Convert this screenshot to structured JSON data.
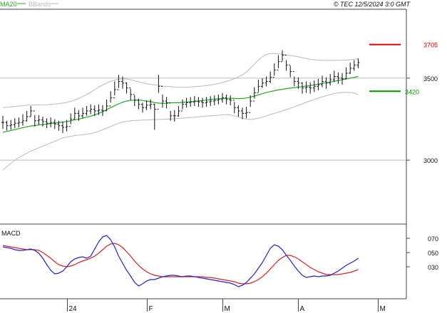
{
  "header": {
    "legend_ma": "MA20",
    "legend_bb": "BBands",
    "copyright": "© TEC 12/5/2024 3:0 GMT"
  },
  "colors": {
    "price": "#111111",
    "ma": "#22aa22",
    "bands": "#bbbbbb",
    "macd": "#2222dd",
    "signal": "#dd2222",
    "grid": "#bbbbbb",
    "resistance": "#dd0000",
    "support": "#009900"
  },
  "chart_data": [
    {
      "type": "ohlc",
      "title": "",
      "legend": [
        "MA20",
        "BBands"
      ],
      "y_ticks": [
        "3000",
        "3500"
      ],
      "y_tick_values": [
        3000,
        3500
      ],
      "ylim": [
        2610,
        3920
      ],
      "x_ticks": [
        "24",
        "F",
        "M",
        "A",
        "M"
      ],
      "x_tick_index": [
        16,
        36,
        55,
        74,
        94
      ],
      "levels": [
        {
          "label": "3705",
          "value": 3705,
          "color": "red"
        },
        {
          "label": "3420",
          "value": 3420,
          "color": "green"
        }
      ],
      "close": [
        3230,
        3210,
        3215,
        3225,
        3230,
        3240,
        3265,
        3300,
        3240,
        3245,
        3235,
        3225,
        3230,
        3220,
        3210,
        3200,
        3205,
        3250,
        3285,
        3270,
        3285,
        3300,
        3310,
        3300,
        3305,
        3300,
        3330,
        3380,
        3430,
        3480,
        3470,
        3440,
        3400,
        3365,
        3340,
        3320,
        3335,
        3340,
        3310,
        3450,
        3360,
        3350,
        3270,
        3270,
        3300,
        3340,
        3350,
        3355,
        3360,
        3355,
        3350,
        3355,
        3360,
        3365,
        3370,
        3380,
        3370,
        3365,
        3320,
        3300,
        3285,
        3290,
        3360,
        3410,
        3450,
        3470,
        3480,
        3505,
        3550,
        3600,
        3640,
        3580,
        3540,
        3480,
        3470,
        3440,
        3445,
        3440,
        3450,
        3460,
        3480,
        3470,
        3490,
        3510,
        3500,
        3495,
        3530,
        3560,
        3580,
        3595
      ],
      "high": [
        3270,
        3240,
        3245,
        3255,
        3260,
        3280,
        3300,
        3330,
        3275,
        3275,
        3265,
        3255,
        3260,
        3250,
        3240,
        3235,
        3245,
        3285,
        3320,
        3305,
        3320,
        3330,
        3340,
        3335,
        3340,
        3335,
        3370,
        3420,
        3480,
        3520,
        3510,
        3475,
        3435,
        3395,
        3375,
        3350,
        3365,
        3370,
        3345,
        3520,
        3400,
        3385,
        3300,
        3305,
        3330,
        3370,
        3380,
        3385,
        3390,
        3385,
        3380,
        3385,
        3390,
        3395,
        3400,
        3410,
        3400,
        3395,
        3355,
        3335,
        3320,
        3325,
        3395,
        3445,
        3490,
        3500,
        3510,
        3540,
        3590,
        3640,
        3670,
        3610,
        3575,
        3510,
        3505,
        3475,
        3480,
        3475,
        3485,
        3495,
        3515,
        3505,
        3525,
        3545,
        3535,
        3530,
        3565,
        3595,
        3610,
        3620
      ],
      "low": [
        3190,
        3180,
        3185,
        3195,
        3200,
        3210,
        3235,
        3265,
        3205,
        3215,
        3205,
        3195,
        3200,
        3190,
        3180,
        3165,
        3175,
        3220,
        3250,
        3240,
        3255,
        3270,
        3280,
        3270,
        3275,
        3270,
        3300,
        3350,
        3395,
        3440,
        3435,
        3405,
        3365,
        3330,
        3310,
        3290,
        3305,
        3310,
        3185,
        3410,
        3320,
        3315,
        3240,
        3235,
        3265,
        3310,
        3320,
        3325,
        3330,
        3325,
        3320,
        3325,
        3330,
        3335,
        3340,
        3350,
        3340,
        3335,
        3285,
        3265,
        3250,
        3255,
        3325,
        3375,
        3415,
        3440,
        3450,
        3470,
        3515,
        3560,
        3605,
        3545,
        3505,
        3450,
        3435,
        3405,
        3410,
        3405,
        3415,
        3425,
        3445,
        3435,
        3455,
        3475,
        3465,
        3460,
        3495,
        3525,
        3545,
        3560
      ],
      "ma20": [
        3170,
        3175,
        3180,
        3186,
        3192,
        3198,
        3203,
        3208,
        3211,
        3214,
        3217,
        3220,
        3223,
        3226,
        3229,
        3232,
        3236,
        3240,
        3245,
        3250,
        3256,
        3262,
        3268,
        3276,
        3285,
        3296,
        3308,
        3320,
        3332,
        3343,
        3353,
        3360,
        3364,
        3366,
        3366,
        3364,
        3360,
        3356,
        3351,
        3348,
        3346,
        3347,
        3349,
        3350,
        3350,
        3352,
        3354,
        3356,
        3358,
        3360,
        3363,
        3366,
        3369,
        3372,
        3374,
        3376,
        3377,
        3377,
        3376,
        3375,
        3376,
        3379,
        3384,
        3391,
        3398,
        3405,
        3412,
        3418,
        3423,
        3428,
        3432,
        3436,
        3439,
        3442,
        3445,
        3448,
        3452,
        3455,
        3459,
        3463,
        3468,
        3472,
        3476,
        3481,
        3485,
        3490,
        3495,
        3500,
        3505,
        3510
      ],
      "bb_upper": [
        3320,
        3322,
        3325,
        3327,
        3330,
        3332,
        3335,
        3336,
        3336,
        3337,
        3337,
        3338,
        3340,
        3342,
        3344,
        3348,
        3352,
        3358,
        3366,
        3376,
        3388,
        3400,
        3414,
        3430,
        3445,
        3458,
        3470,
        3480,
        3488,
        3494,
        3496,
        3495,
        3490,
        3484,
        3478,
        3472,
        3466,
        3462,
        3458,
        3455,
        3452,
        3450,
        3448,
        3446,
        3445,
        3445,
        3445,
        3446,
        3448,
        3450,
        3452,
        3455,
        3458,
        3462,
        3467,
        3473,
        3480,
        3488,
        3497,
        3507,
        3520,
        3537,
        3560,
        3585,
        3610,
        3630,
        3645,
        3650,
        3650,
        3648,
        3645,
        3642,
        3638,
        3634,
        3630,
        3625,
        3620,
        3615,
        3612,
        3610,
        3609,
        3608,
        3608,
        3608,
        3608,
        3609,
        3610,
        3612,
        3615,
        3618
      ],
      "bb_lower": [
        2940,
        2960,
        2980,
        3000,
        3015,
        3030,
        3042,
        3055,
        3065,
        3075,
        3085,
        3095,
        3105,
        3115,
        3125,
        3135,
        3140,
        3145,
        3150,
        3152,
        3155,
        3158,
        3162,
        3168,
        3175,
        3185,
        3195,
        3205,
        3215,
        3225,
        3232,
        3237,
        3240,
        3242,
        3243,
        3244,
        3245,
        3246,
        3247,
        3248,
        3249,
        3250,
        3251,
        3252,
        3254,
        3256,
        3258,
        3260,
        3262,
        3264,
        3266,
        3268,
        3270,
        3272,
        3274,
        3276,
        3278,
        3276,
        3270,
        3262,
        3255,
        3250,
        3248,
        3250,
        3255,
        3262,
        3270,
        3278,
        3285,
        3292,
        3300,
        3308,
        3316,
        3325,
        3334,
        3343,
        3352,
        3361,
        3370,
        3378,
        3386,
        3393,
        3400,
        3406,
        3410,
        3413,
        3414,
        3412,
        3408,
        3400
      ],
      "macd_yticks": [
        "070",
        "050",
        "030"
      ],
      "macd_ytick_values": [
        70,
        50,
        30
      ],
      "macd_ylim": [
        -15,
        90
      ],
      "macd": [
        58,
        57,
        56,
        54,
        53,
        53,
        54,
        55,
        53,
        49,
        42,
        33,
        25,
        20,
        21,
        24,
        30,
        37,
        41,
        43,
        44,
        42,
        45,
        55,
        65,
        72,
        74,
        68,
        58,
        45,
        35,
        25,
        17,
        8,
        3,
        6,
        10,
        12,
        12,
        14,
        16,
        17,
        18,
        18,
        17,
        16,
        17,
        17,
        16,
        15,
        14,
        13,
        12,
        11,
        10,
        9,
        8,
        7,
        5,
        2,
        4,
        8,
        14,
        20,
        28,
        36,
        46,
        56,
        61,
        59,
        54,
        46,
        39,
        31,
        24,
        18,
        15,
        16,
        17,
        16,
        17,
        17,
        18,
        21,
        24,
        28,
        32,
        35,
        38,
        42
      ],
      "signal": [
        60,
        59,
        58,
        57,
        56,
        55,
        54,
        54,
        54,
        53,
        50,
        46,
        42,
        37,
        33,
        31,
        30,
        31,
        33,
        36,
        38,
        40,
        42,
        45,
        49,
        54,
        59,
        62,
        63,
        61,
        57,
        51,
        45,
        38,
        32,
        27,
        23,
        20,
        18,
        17,
        16,
        16,
        16,
        16,
        16,
        16,
        16,
        16,
        16,
        16,
        16,
        15,
        15,
        14,
        13,
        12,
        11,
        10,
        9,
        7,
        6,
        6,
        7,
        9,
        12,
        16,
        21,
        27,
        33,
        39,
        43,
        46,
        46,
        44,
        41,
        37,
        33,
        29,
        26,
        23,
        21,
        19,
        19,
        19,
        19,
        20,
        21,
        22,
        24,
        26
      ]
    }
  ]
}
